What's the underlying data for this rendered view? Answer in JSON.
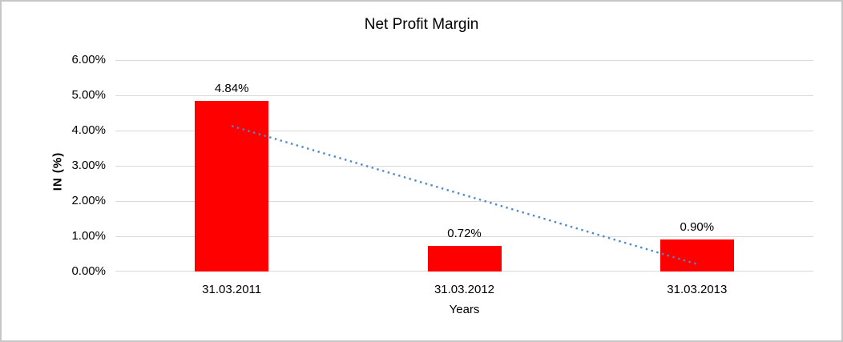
{
  "window": {
    "background_color": "#ffffff",
    "border_color": "#c6c6c6"
  },
  "chart_data": {
    "type": "bar",
    "title": "Net Profit Margin",
    "xlabel": "Years",
    "ylabel": "IN (%)",
    "categories": [
      "31.03.2011",
      "31.03.2012",
      "31.03.2013"
    ],
    "values": [
      4.84,
      0.72,
      0.9
    ],
    "data_labels": [
      "4.84%",
      "0.72%",
      "0.90%"
    ],
    "ylim": [
      0,
      6
    ],
    "ytick_step": 1,
    "ytick_labels": [
      "0.00%",
      "1.00%",
      "2.00%",
      "3.00%",
      "4.00%",
      "5.00%",
      "6.00%"
    ],
    "grid": true,
    "legend": "none",
    "bar_color": "#ff0000",
    "gridline_color": "#d9d9d9",
    "text_color": "#000000",
    "trendline": {
      "type": "linear",
      "style": "dotted",
      "color": "#4e88c7",
      "start_category_index": 0,
      "start_value": 4.13,
      "end_category_index": 2,
      "end_value": 0.21
    }
  }
}
